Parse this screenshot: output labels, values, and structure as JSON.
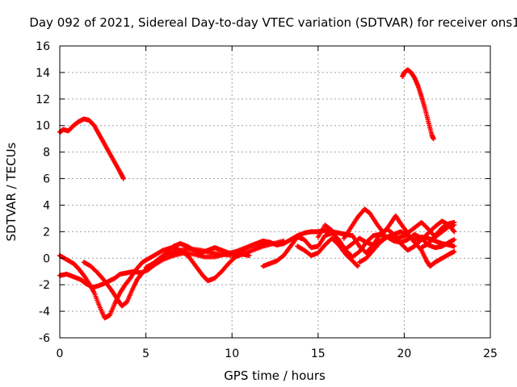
{
  "chart_data": {
    "type": "scatter",
    "title": "Day 092 of 2021, Sidereal Day-to-day VTEC variation (SDTVAR) for receiver ons1",
    "xlabel": "GPS time / hours",
    "ylabel": "SDTVAR / TECUs",
    "xlim": [
      0,
      25
    ],
    "ylim": [
      -6,
      16
    ],
    "xticks": [
      0,
      5,
      10,
      15,
      20,
      25
    ],
    "yticks": [
      -6,
      -4,
      -2,
      0,
      2,
      4,
      6,
      8,
      10,
      12,
      14,
      16
    ],
    "xtick_labels": [
      "0",
      "5",
      "10",
      "15",
      "20",
      "25"
    ],
    "ytick_labels": [
      "-6",
      "-4",
      "-2",
      "0",
      "2",
      "4",
      "6",
      "8",
      "10",
      "12",
      "14",
      "16"
    ],
    "grid": true,
    "marker": "+",
    "color": "#ff0000",
    "series": [
      {
        "name": "arc-high-early",
        "points": [
          [
            0.0,
            9.5
          ],
          [
            0.2,
            9.7
          ],
          [
            0.5,
            9.6
          ],
          [
            0.8,
            10.0
          ],
          [
            1.1,
            10.3
          ],
          [
            1.4,
            10.5
          ],
          [
            1.7,
            10.4
          ],
          [
            2.0,
            10.0
          ],
          [
            2.3,
            9.3
          ],
          [
            2.6,
            8.6
          ],
          [
            2.9,
            7.9
          ],
          [
            3.2,
            7.2
          ],
          [
            3.5,
            6.5
          ],
          [
            3.7,
            6.0
          ]
        ]
      },
      {
        "name": "arc-high-late",
        "points": [
          [
            19.9,
            13.7
          ],
          [
            20.0,
            14.0
          ],
          [
            20.2,
            14.2
          ],
          [
            20.4,
            14.0
          ],
          [
            20.6,
            13.6
          ],
          [
            20.8,
            13.0
          ],
          [
            21.0,
            12.2
          ],
          [
            21.2,
            11.3
          ],
          [
            21.4,
            10.3
          ],
          [
            21.6,
            9.3
          ],
          [
            21.7,
            9.0
          ]
        ]
      },
      {
        "name": "arc-a",
        "points": [
          [
            0.0,
            0.2
          ],
          [
            0.4,
            -0.1
          ],
          [
            0.8,
            -0.4
          ],
          [
            1.1,
            -0.8
          ],
          [
            1.4,
            -1.3
          ],
          [
            1.7,
            -1.9
          ],
          [
            2.0,
            -2.6
          ],
          [
            2.3,
            -3.6
          ],
          [
            2.6,
            -4.5
          ],
          [
            2.9,
            -4.3
          ],
          [
            3.2,
            -3.4
          ],
          [
            3.5,
            -2.6
          ],
          [
            3.8,
            -2.0
          ],
          [
            4.1,
            -1.5
          ],
          [
            4.4,
            -0.9
          ],
          [
            4.8,
            -0.3
          ],
          [
            5.2,
            0.0
          ],
          [
            5.6,
            0.3
          ],
          [
            6.0,
            0.6
          ],
          [
            6.5,
            0.8
          ],
          [
            7.0,
            0.6
          ],
          [
            7.5,
            0.1
          ],
          [
            7.9,
            -0.6
          ],
          [
            8.3,
            -1.3
          ],
          [
            8.6,
            -1.7
          ],
          [
            9.0,
            -1.5
          ],
          [
            9.4,
            -1.0
          ],
          [
            9.8,
            -0.4
          ],
          [
            10.2,
            0.1
          ],
          [
            10.6,
            0.3
          ],
          [
            11.0,
            0.2
          ]
        ]
      },
      {
        "name": "arc-b",
        "points": [
          [
            0.0,
            -1.3
          ],
          [
            0.4,
            -1.2
          ],
          [
            0.8,
            -1.4
          ],
          [
            1.2,
            -1.6
          ],
          [
            1.5,
            -1.9
          ],
          [
            1.9,
            -2.2
          ],
          [
            2.2,
            -2.1
          ],
          [
            2.6,
            -1.9
          ],
          [
            2.9,
            -1.7
          ],
          [
            3.2,
            -1.5
          ],
          [
            3.5,
            -1.2
          ],
          [
            3.9,
            -1.1
          ],
          [
            4.3,
            -1.0
          ],
          [
            4.7,
            -1.1
          ],
          [
            5.1,
            -0.9
          ],
          [
            5.5,
            -0.5
          ],
          [
            6.0,
            -0.1
          ],
          [
            6.6,
            0.2
          ],
          [
            7.2,
            0.4
          ],
          [
            7.8,
            0.3
          ],
          [
            8.4,
            0.1
          ],
          [
            9.0,
            0.1
          ],
          [
            9.6,
            0.3
          ],
          [
            10.2,
            0.5
          ],
          [
            10.8,
            0.8
          ],
          [
            11.4,
            1.0
          ],
          [
            12.0,
            1.2
          ]
        ]
      },
      {
        "name": "arc-c",
        "points": [
          [
            1.4,
            -0.3
          ],
          [
            1.8,
            -0.6
          ],
          [
            2.2,
            -1.1
          ],
          [
            2.6,
            -1.7
          ],
          [
            3.0,
            -2.4
          ],
          [
            3.3,
            -3.0
          ],
          [
            3.6,
            -3.6
          ],
          [
            3.9,
            -3.3
          ],
          [
            4.2,
            -2.4
          ],
          [
            4.5,
            -1.6
          ],
          [
            4.8,
            -1.1
          ],
          [
            5.2,
            -0.6
          ],
          [
            5.6,
            -0.3
          ],
          [
            6.0,
            0.1
          ],
          [
            6.5,
            0.4
          ],
          [
            7.0,
            0.6
          ],
          [
            7.6,
            0.7
          ],
          [
            8.2,
            0.6
          ],
          [
            8.8,
            0.4
          ],
          [
            9.4,
            0.3
          ],
          [
            10.0,
            0.2
          ],
          [
            10.6,
            0.3
          ],
          [
            11.2,
            0.6
          ],
          [
            11.8,
            0.9
          ],
          [
            12.4,
            1.1
          ],
          [
            13.0,
            1.3
          ]
        ]
      },
      {
        "name": "arc-d",
        "points": [
          [
            5.0,
            -0.7
          ],
          [
            5.4,
            -0.4
          ],
          [
            5.8,
            0.0
          ],
          [
            6.2,
            0.4
          ],
          [
            6.6,
            0.9
          ],
          [
            7.0,
            1.1
          ],
          [
            7.4,
            0.9
          ],
          [
            7.8,
            0.6
          ],
          [
            8.2,
            0.4
          ],
          [
            8.6,
            0.6
          ],
          [
            9.0,
            0.8
          ],
          [
            9.4,
            0.6
          ],
          [
            9.8,
            0.4
          ],
          [
            10.2,
            0.4
          ],
          [
            10.6,
            0.6
          ],
          [
            11.0,
            0.9
          ],
          [
            11.4,
            1.1
          ],
          [
            11.8,
            1.3
          ],
          [
            12.2,
            1.2
          ],
          [
            12.6,
            1.0
          ],
          [
            13.0,
            1.1
          ],
          [
            13.4,
            1.4
          ],
          [
            13.8,
            1.7
          ],
          [
            14.2,
            1.9
          ],
          [
            14.6,
            2.0
          ],
          [
            15.0,
            2.0
          ],
          [
            15.4,
            2.1
          ],
          [
            15.8,
            2.0
          ],
          [
            16.2,
            1.9
          ],
          [
            16.6,
            1.8
          ],
          [
            17.0,
            1.7
          ]
        ]
      },
      {
        "name": "arc-e",
        "points": [
          [
            11.8,
            -0.6
          ],
          [
            12.2,
            -0.4
          ],
          [
            12.6,
            -0.2
          ],
          [
            13.0,
            0.2
          ],
          [
            13.4,
            0.9
          ],
          [
            13.8,
            1.6
          ],
          [
            14.2,
            1.4
          ],
          [
            14.6,
            0.8
          ],
          [
            15.0,
            0.9
          ],
          [
            15.4,
            1.7
          ],
          [
            15.8,
            1.9
          ],
          [
            16.2,
            1.4
          ],
          [
            16.6,
            0.6
          ],
          [
            17.0,
            0.1
          ],
          [
            17.4,
            0.5
          ],
          [
            17.8,
            1.2
          ],
          [
            18.2,
            1.7
          ],
          [
            18.6,
            1.8
          ],
          [
            19.0,
            1.6
          ],
          [
            19.4,
            1.8
          ],
          [
            19.8,
            2.0
          ],
          [
            20.2,
            1.7
          ],
          [
            20.6,
            1.4
          ],
          [
            21.0,
            1.6
          ],
          [
            21.4,
            1.5
          ],
          [
            21.8,
            1.3
          ],
          [
            22.2,
            1.1
          ],
          [
            22.6,
            1.0
          ],
          [
            22.9,
            0.9
          ]
        ]
      },
      {
        "name": "arc-f",
        "points": [
          [
            13.8,
            0.9
          ],
          [
            14.2,
            0.6
          ],
          [
            14.6,
            0.2
          ],
          [
            15.0,
            0.4
          ],
          [
            15.4,
            1.0
          ],
          [
            15.8,
            1.5
          ],
          [
            16.2,
            1.0
          ],
          [
            16.6,
            0.3
          ],
          [
            17.0,
            -0.2
          ],
          [
            17.3,
            -0.6
          ]
        ]
      },
      {
        "name": "arc-g",
        "points": [
          [
            15.0,
            1.6
          ],
          [
            15.4,
            2.5
          ],
          [
            15.8,
            2.1
          ],
          [
            16.2,
            1.2
          ],
          [
            16.6,
            0.7
          ],
          [
            17.0,
            1.1
          ],
          [
            17.4,
            1.5
          ],
          [
            17.8,
            1.2
          ],
          [
            18.2,
            1.0
          ],
          [
            18.6,
            1.3
          ],
          [
            19.0,
            1.6
          ],
          [
            19.4,
            1.3
          ],
          [
            19.8,
            1.2
          ],
          [
            20.2,
            1.4
          ],
          [
            20.6,
            1.8
          ],
          [
            21.0,
            1.5
          ],
          [
            21.4,
            1.0
          ],
          [
            21.8,
            0.8
          ],
          [
            22.2,
            0.9
          ],
          [
            22.6,
            1.2
          ],
          [
            22.9,
            1.4
          ]
        ]
      },
      {
        "name": "arc-h",
        "points": [
          [
            16.5,
            1.5
          ],
          [
            16.9,
            2.3
          ],
          [
            17.3,
            3.1
          ],
          [
            17.7,
            3.7
          ],
          [
            18.0,
            3.4
          ],
          [
            18.4,
            2.6
          ],
          [
            18.8,
            1.9
          ],
          [
            19.2,
            2.6
          ],
          [
            19.5,
            3.2
          ],
          [
            19.8,
            2.6
          ],
          [
            20.2,
            1.9
          ],
          [
            20.6,
            2.3
          ],
          [
            21.0,
            2.7
          ],
          [
            21.4,
            2.2
          ],
          [
            21.8,
            1.6
          ],
          [
            22.2,
            2.0
          ],
          [
            22.6,
            2.4
          ],
          [
            22.9,
            2.5
          ]
        ]
      },
      {
        "name": "arc-i",
        "points": [
          [
            17.0,
            1.7
          ],
          [
            17.4,
            0.9
          ],
          [
            17.8,
            0.4
          ],
          [
            18.2,
            1.0
          ],
          [
            18.6,
            1.8
          ],
          [
            19.0,
            2.2
          ],
          [
            19.4,
            1.8
          ],
          [
            19.8,
            1.1
          ],
          [
            20.2,
            0.6
          ],
          [
            20.6,
            0.9
          ],
          [
            21.0,
            1.4
          ],
          [
            21.4,
            1.9
          ],
          [
            21.8,
            2.4
          ],
          [
            22.2,
            2.8
          ],
          [
            22.6,
            2.5
          ],
          [
            22.9,
            2.0
          ]
        ]
      },
      {
        "name": "arc-j",
        "points": [
          [
            17.4,
            -0.3
          ],
          [
            17.8,
            0.0
          ],
          [
            18.2,
            0.6
          ],
          [
            18.6,
            1.2
          ],
          [
            19.0,
            1.6
          ],
          [
            19.4,
            1.4
          ],
          [
            19.8,
            1.6
          ],
          [
            20.2,
            1.8
          ],
          [
            20.6,
            1.2
          ],
          [
            21.0,
            0.6
          ],
          [
            21.3,
            -0.2
          ],
          [
            21.5,
            -0.6
          ],
          [
            21.8,
            -0.3
          ],
          [
            22.2,
            0.0
          ],
          [
            22.6,
            0.3
          ],
          [
            22.9,
            0.5
          ]
        ]
      },
      {
        "name": "arc-k",
        "points": [
          [
            21.0,
            0.8
          ],
          [
            21.4,
            1.1
          ],
          [
            21.8,
            1.7
          ],
          [
            22.2,
            2.3
          ],
          [
            22.6,
            2.6
          ],
          [
            22.9,
            2.7
          ]
        ]
      }
    ]
  }
}
